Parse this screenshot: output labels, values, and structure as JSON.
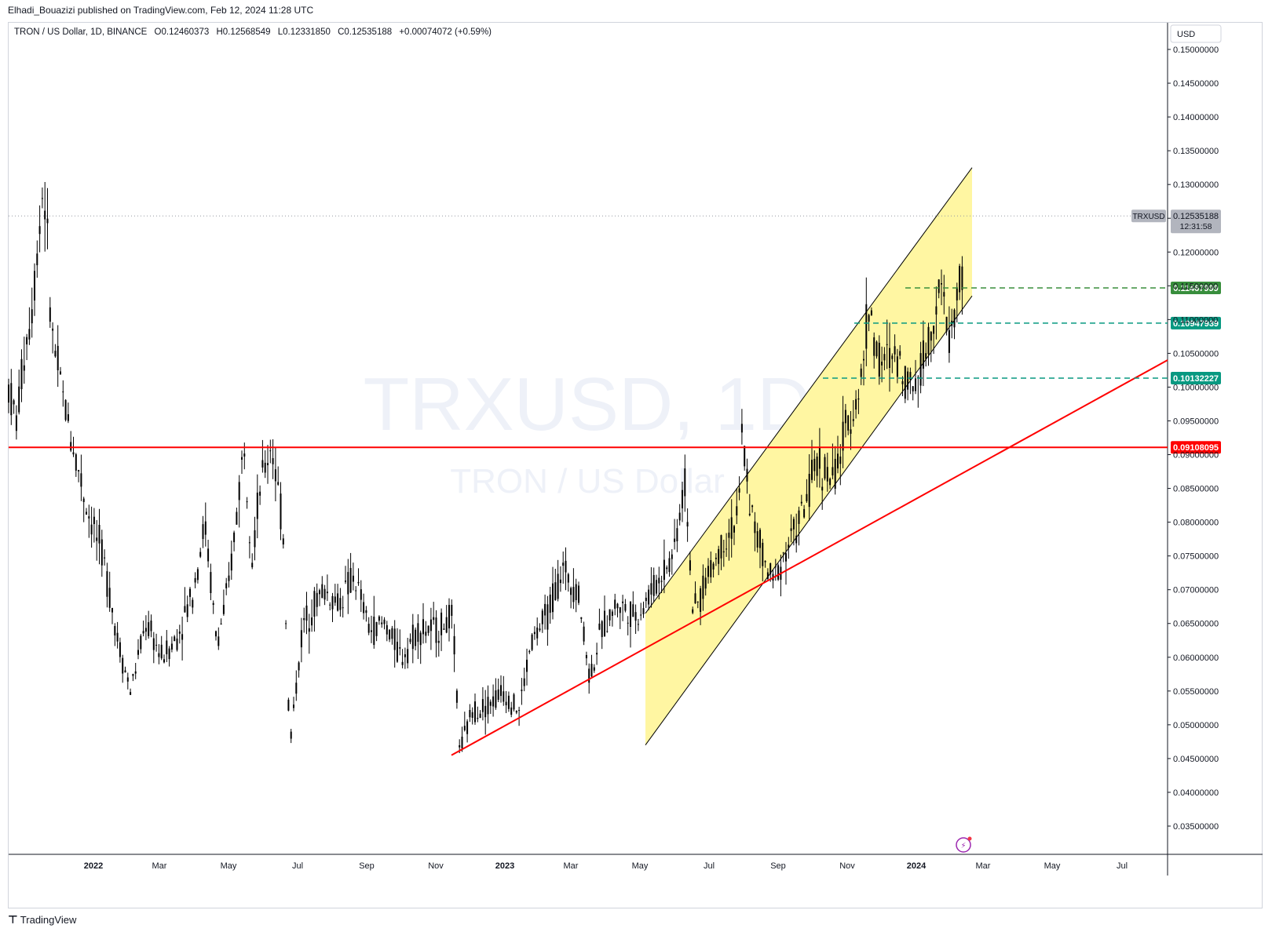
{
  "header": {
    "publisher": "Elhadi_Bouazizi published on TradingView.com, Feb 12, 2024 11:28 UTC"
  },
  "legend": {
    "symbol": "TRON / US Dollar, 1D, BINANCE",
    "open": "O0.12460373",
    "high": "H0.12568549",
    "low": "L0.12331850",
    "close": "C0.12535188",
    "change": "+0.00074072 (+0.59%)"
  },
  "watermark": {
    "ticker": "TRXUSD, 1D",
    "name": "TRON / US Dollar"
  },
  "price_axis": {
    "currency": "USD",
    "last_price_symbol": "TRXUSD",
    "last_price": "0.12535188",
    "countdown": "12:31:58",
    "level_labels": [
      "0.11467999",
      "0.10947939",
      "0.10132227",
      "0.09108095"
    ]
  },
  "footer": {
    "brand": "TradingView"
  },
  "colors": {
    "candle": "#000000",
    "horizontal_level": "#ff0000",
    "trendline": "#ff0000",
    "channel_fill": "#fff59d",
    "channel_border": "#000000",
    "level_green": "#388e3c",
    "level_teal": "#089981",
    "last_price_badge": "#b2b5be"
  },
  "chart_data": {
    "type": "candlestick",
    "symbol": "TRXUSD",
    "ylim": [
      0.031,
      0.155
    ],
    "y_ticks": [
      "0.15000000",
      "0.14500000",
      "0.14000000",
      "0.13500000",
      "0.13000000",
      "0.12500000",
      "0.12000000",
      "0.11500000",
      "0.11000000",
      "0.10500000",
      "0.10000000",
      "0.09500000",
      "0.09000000",
      "0.08500000",
      "0.08000000",
      "0.07500000",
      "0.07000000",
      "0.06500000",
      "0.06000000",
      "0.05500000",
      "0.05000000",
      "0.04500000",
      "0.04000000",
      "0.03500000"
    ],
    "x_ticks": [
      "2022",
      "Mar",
      "May",
      "Jul",
      "Sep",
      "Nov",
      "2023",
      "Mar",
      "May",
      "Jul",
      "Sep",
      "Nov",
      "2024",
      "Mar",
      "May",
      "Jul"
    ],
    "price_path": [
      [
        0,
        0.1
      ],
      [
        10,
        0.095
      ],
      [
        20,
        0.105
      ],
      [
        30,
        0.112
      ],
      [
        40,
        0.125
      ],
      [
        45,
        0.131
      ],
      [
        55,
        0.108
      ],
      [
        70,
        0.098
      ],
      [
        85,
        0.09
      ],
      [
        100,
        0.082
      ],
      [
        120,
        0.075
      ],
      [
        140,
        0.062
      ],
      [
        155,
        0.055
      ],
      [
        175,
        0.065
      ],
      [
        195,
        0.06
      ],
      [
        215,
        0.063
      ],
      [
        235,
        0.07
      ],
      [
        250,
        0.08
      ],
      [
        265,
        0.062
      ],
      [
        280,
        0.07
      ],
      [
        300,
        0.092
      ],
      [
        310,
        0.075
      ],
      [
        320,
        0.085
      ],
      [
        335,
        0.092
      ],
      [
        350,
        0.078
      ],
      [
        358,
        0.047
      ],
      [
        375,
        0.065
      ],
      [
        400,
        0.07
      ],
      [
        420,
        0.068
      ],
      [
        440,
        0.072
      ],
      [
        460,
        0.064
      ],
      [
        480,
        0.065
      ],
      [
        500,
        0.06
      ],
      [
        520,
        0.064
      ],
      [
        545,
        0.064
      ],
      [
        565,
        0.066
      ],
      [
        575,
        0.046
      ],
      [
        590,
        0.052
      ],
      [
        610,
        0.053
      ],
      [
        630,
        0.055
      ],
      [
        650,
        0.052
      ],
      [
        665,
        0.062
      ],
      [
        685,
        0.066
      ],
      [
        705,
        0.073
      ],
      [
        725,
        0.07
      ],
      [
        740,
        0.057
      ],
      [
        755,
        0.064
      ],
      [
        775,
        0.068
      ],
      [
        800,
        0.066
      ],
      [
        825,
        0.071
      ],
      [
        845,
        0.075
      ],
      [
        862,
        0.086
      ],
      [
        872,
        0.066
      ],
      [
        890,
        0.072
      ],
      [
        910,
        0.077
      ],
      [
        930,
        0.081
      ],
      [
        933,
        0.094
      ],
      [
        945,
        0.082
      ],
      [
        955,
        0.077
      ],
      [
        972,
        0.071
      ],
      [
        990,
        0.076
      ],
      [
        1010,
        0.081
      ],
      [
        1030,
        0.089
      ],
      [
        1050,
        0.086
      ],
      [
        1070,
        0.095
      ],
      [
        1085,
        0.1
      ],
      [
        1095,
        0.112
      ],
      [
        1110,
        0.103
      ],
      [
        1130,
        0.105
      ],
      [
        1150,
        0.1
      ],
      [
        1170,
        0.106
      ],
      [
        1185,
        0.115
      ],
      [
        1200,
        0.107
      ],
      [
        1215,
        0.118
      ],
      [
        1222,
        0.1255
      ]
    ],
    "horizontal_lines": [
      {
        "price": 0.09108095,
        "label": "0.09108095",
        "style": "solid",
        "color": "#ff0000"
      },
      {
        "price": 0.11467999,
        "label": "0.11467999",
        "style": "dashed",
        "color": "#388e3c",
        "from_x": 1153
      },
      {
        "price": 0.10947939,
        "label": "0.10947939",
        "style": "dashed",
        "color": "#089981",
        "from_x": 1088
      },
      {
        "price": 0.10132227,
        "label": "0.10132227",
        "style": "dashed",
        "color": "#089981",
        "from_x": 1048
      }
    ],
    "trendline": {
      "from": [
        575,
        0.0455
      ],
      "to": [
        1487,
        0.104
      ]
    },
    "channel": {
      "upper": {
        "from": [
          822,
          0.0665
        ],
        "to": [
          1238,
          0.1325
        ]
      },
      "lower": {
        "from": [
          822,
          0.047
        ],
        "to": [
          1238,
          0.1135
        ]
      }
    }
  }
}
